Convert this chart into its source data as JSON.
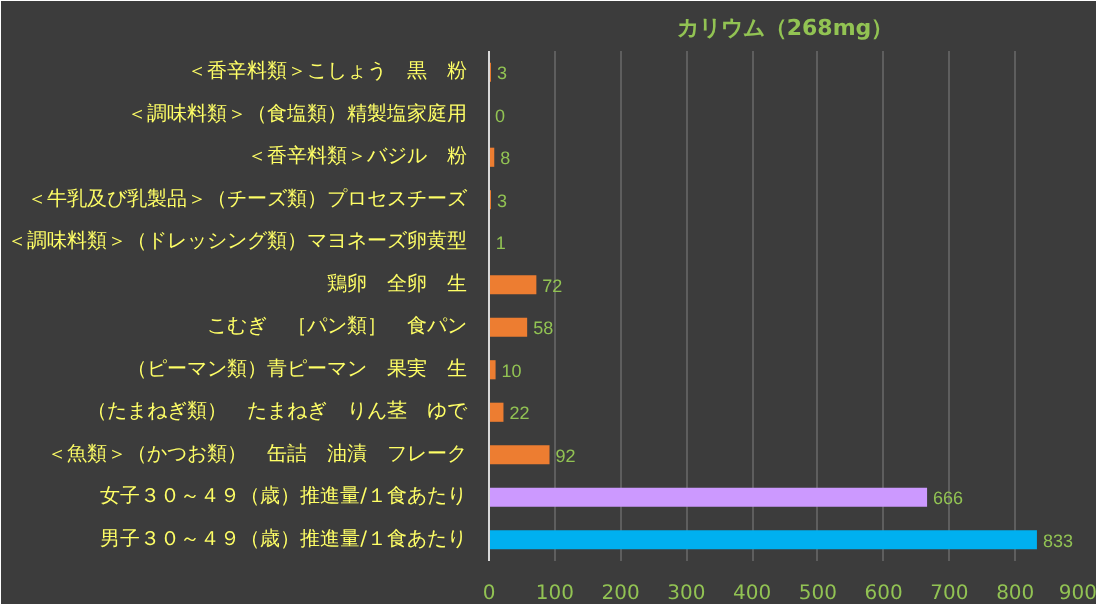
{
  "chart_data": {
    "type": "bar",
    "orientation": "horizontal",
    "title": "カリウム（268mg）",
    "categories": [
      "＜香辛料類＞こしょう　黒　粉",
      "＜調味料類＞（食塩類）精製塩家庭用",
      "＜香辛料類＞バジル　粉",
      "＜牛乳及び乳製品＞（チーズ類）プロセスチーズ",
      "＜調味料類＞（ドレッシング類）マヨネーズ卵黄型",
      "鶏卵　全卵　生",
      "こむぎ　［パン類］　食パン",
      "（ピーマン類）青ピーマン　果実　生",
      "（たまねぎ類）　たまねぎ　りん茎　ゆで",
      "＜魚類＞（かつお類）　缶詰　油漬　フレーク",
      "女子３０～４９（歳）推進量/１食あたり",
      "男子３０～４９（歳）推進量/１食あたり"
    ],
    "values": [
      3,
      0,
      8,
      3,
      1,
      72,
      58,
      10,
      22,
      92,
      666,
      833
    ],
    "colors": [
      "#ed7d31",
      "#ed7d31",
      "#ed7d31",
      "#ed7d31",
      "#ed7d31",
      "#ed7d31",
      "#ed7d31",
      "#ed7d31",
      "#ed7d31",
      "#ed7d31",
      "#cc99ff",
      "#00b0f0"
    ],
    "xlim": [
      0,
      900
    ],
    "xticks": [
      0,
      100,
      200,
      300,
      400,
      500,
      600,
      700,
      800,
      900
    ],
    "grid": "x",
    "data_labels": true
  }
}
